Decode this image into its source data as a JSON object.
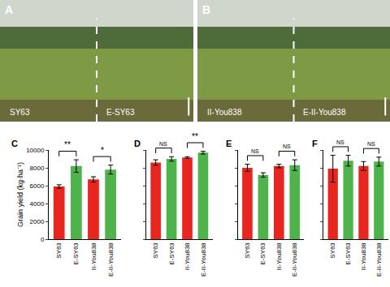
{
  "photos": [
    {
      "panel": "A",
      "left": "SY63",
      "right": "E-SY63"
    },
    {
      "panel": "B",
      "left": "II-You838",
      "right": "E-II-You838"
    }
  ],
  "chart_data": [
    {
      "type": "bar",
      "title": "C",
      "y_label": "Grain yield (kg·ha⁻¹)",
      "categories": [
        "SY63",
        "E-SY63",
        "II-You838",
        "E-II-You838"
      ],
      "values": [
        5900,
        8200,
        6700,
        7800
      ],
      "errors": [
        200,
        700,
        300,
        500
      ],
      "colors": [
        "#e8251f",
        "#4db34a",
        "#e8251f",
        "#4db34a"
      ],
      "significance": [
        "**",
        "*"
      ],
      "ylim": [
        0,
        10000
      ],
      "yticks": [
        0,
        2000,
        4000,
        6000,
        8000,
        10000
      ]
    },
    {
      "type": "bar",
      "title": "D",
      "tick_labels": "x",
      "categories": [
        "SY63",
        "E-SY63",
        "II-You838",
        "E-II-You838"
      ],
      "values": [
        8600,
        9000,
        9150,
        9700
      ],
      "errors": [
        300,
        250,
        100,
        150
      ],
      "colors": [
        "#e8251f",
        "#4db34a",
        "#e8251f",
        "#4db34a"
      ],
      "significance": [
        "NS",
        "**"
      ],
      "ylim": [
        0,
        10000
      ],
      "yticks": [
        0,
        2000,
        4000,
        6000,
        8000,
        10000
      ]
    },
    {
      "type": "bar",
      "title": "E",
      "tick_labels": "x",
      "categories": [
        "SY63",
        "E-SY63",
        "II-You838",
        "E-II-You838"
      ],
      "values": [
        8000,
        7200,
        8200,
        8300
      ],
      "errors": [
        400,
        250,
        200,
        600
      ],
      "colors": [
        "#e8251f",
        "#4db34a",
        "#e8251f",
        "#4db34a"
      ],
      "significance": [
        "NS",
        "NS"
      ],
      "ylim": [
        0,
        10000
      ],
      "yticks": [
        0,
        2000,
        4000,
        6000,
        8000,
        10000
      ]
    },
    {
      "type": "bar",
      "title": "F",
      "tick_labels": "x",
      "categories": [
        "SY63",
        "E-SY63",
        "II-You838",
        "E-II-You838"
      ],
      "values": [
        7900,
        8800,
        8200,
        8700
      ],
      "errors": [
        1500,
        600,
        500,
        500
      ],
      "colors": [
        "#e8251f",
        "#4db34a",
        "#e8251f",
        "#4db34a"
      ],
      "significance": [
        "NS",
        "NS"
      ],
      "ylim": [
        0,
        10000
      ],
      "yticks": [
        0,
        2000,
        4000,
        6000,
        8000,
        10000
      ]
    }
  ]
}
